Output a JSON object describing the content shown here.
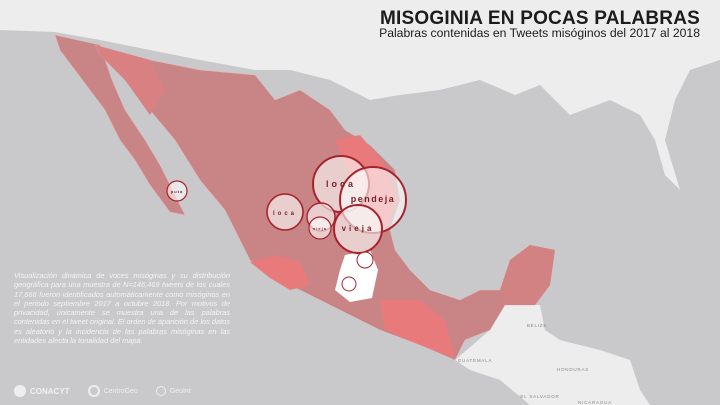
{
  "header": {
    "title": "MISOGINIA EN POCAS PALABRAS",
    "subtitle": "Palabras contenidas en Tweets misóginos del 2017 al 2018"
  },
  "description": "Visualización dinámica de voces misóginas y su distribución geográfica para una muestra de N=146,469 tweets de los cuales 17,666 fueron identificados automáticamente como misóginos en el periodo septiembre 2017 a octubre 2018. Por motivos de privacidad, únicamente se muestra una de las palabras contenidas en el tweet original. El orden de aparición de los datos es aleatorio y la incidencia de las palabras misóginas en las entidades afecta la tonalidad del mapa.",
  "bubbles": {
    "loca_north": "loca",
    "pendeja": "pendeja",
    "vieja_east": "vieja",
    "loca_west": "loca",
    "vieja_small": "vieja",
    "puta_baja": "puta"
  },
  "map_labels": {
    "belize": "BELIZE",
    "guatemala": "GUATEMALA",
    "honduras": "HONDURAS",
    "el_salvador": "EL SALVADOR",
    "nicaragua": "NICARAGUA"
  },
  "logos": [
    "CONACYT",
    "CentroGeo",
    "GeoInt"
  ],
  "colors": {
    "ocean": "#c9c9cc",
    "land": "#ededee",
    "state_base": "#c98486",
    "state_high": "#e97a7c",
    "state_low": "#ffffff",
    "bubble_stroke": "#a8232e"
  }
}
